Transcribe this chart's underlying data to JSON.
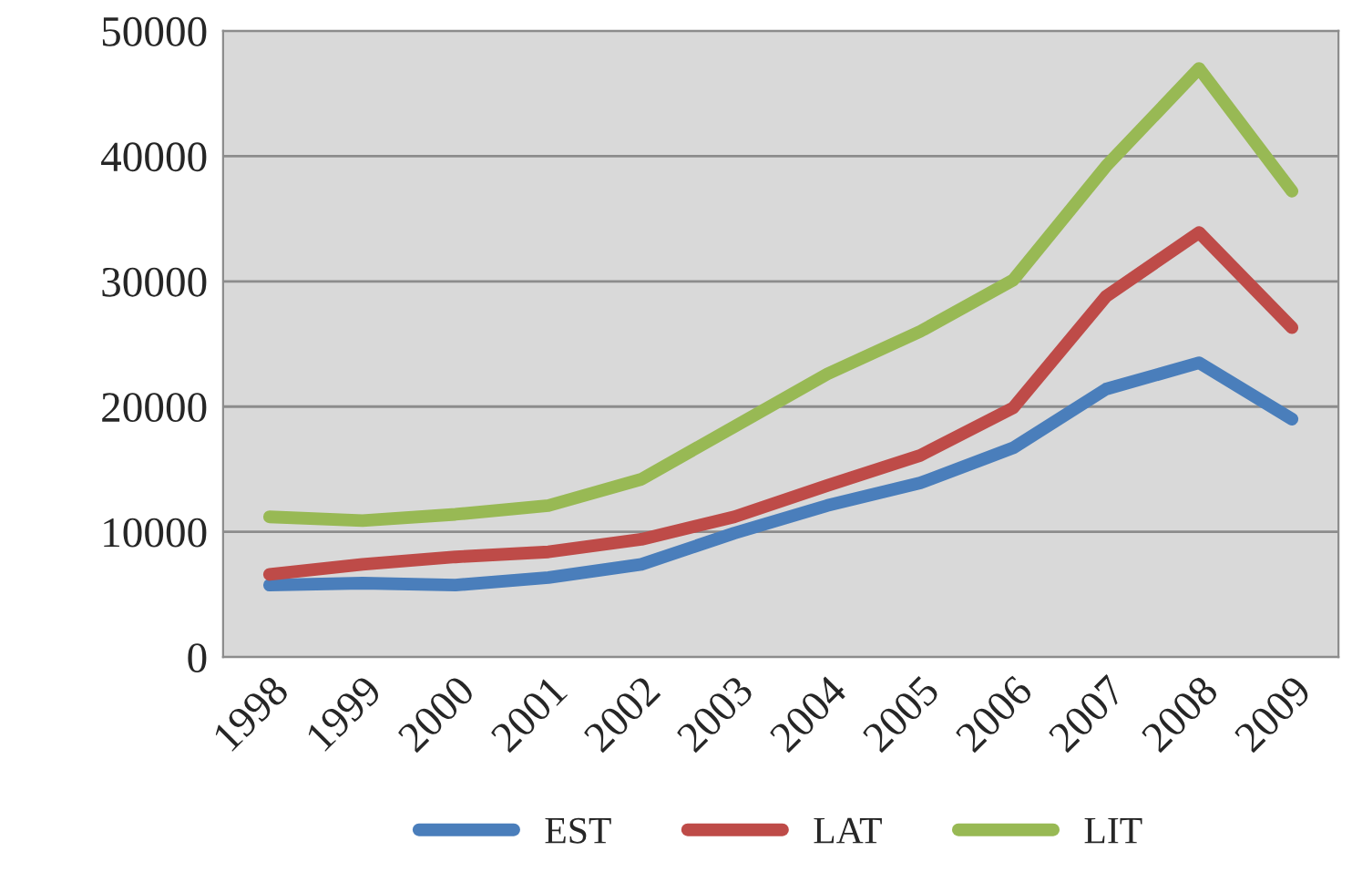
{
  "chart_data": {
    "type": "line",
    "categories": [
      "1998",
      "1999",
      "2000",
      "2001",
      "2002",
      "2003",
      "2004",
      "2005",
      "2006",
      "2007",
      "2008",
      "2009"
    ],
    "series": [
      {
        "name": "EST",
        "color": "#4a7ebb",
        "values": [
          5750,
          5900,
          5750,
          6350,
          7400,
          9900,
          12100,
          13900,
          16700,
          21400,
          23500,
          19000
        ]
      },
      {
        "name": "LAT",
        "color": "#be4b48",
        "values": [
          6600,
          7400,
          8000,
          8400,
          9400,
          11200,
          13700,
          16100,
          19900,
          28800,
          33900,
          26300
        ]
      },
      {
        "name": "LIT",
        "color": "#98b954",
        "values": [
          11200,
          10900,
          11400,
          12100,
          14200,
          18400,
          22600,
          26000,
          30100,
          39200,
          47000,
          37200
        ]
      }
    ],
    "ylim": [
      0,
      50000
    ],
    "yticks": [
      0,
      10000,
      20000,
      30000,
      40000,
      50000
    ],
    "grid": "y",
    "legend": "bottom",
    "marker": "none",
    "line_style": "solid"
  }
}
